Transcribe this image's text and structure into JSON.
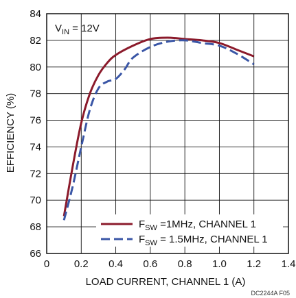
{
  "chart_data": {
    "type": "line",
    "xlabel": "LOAD CURRENT, CHANNEL 1 (A)",
    "ylabel": "EFFICIENCY (%)",
    "xlim": [
      0,
      1.4
    ],
    "ylim": [
      66,
      84
    ],
    "xticks": [
      "0",
      "0.2",
      "0.4",
      "0.6",
      "0.8",
      "1.0",
      "1.2",
      "1.4"
    ],
    "yticks": [
      "66",
      "68",
      "70",
      "72",
      "74",
      "76",
      "78",
      "80",
      "82",
      "84"
    ],
    "grid": true,
    "annotation": {
      "main": "V",
      "sub": "IN",
      "rest": " = 12V"
    },
    "code_label": "DC2244A F05",
    "legend_position": "bottom-right",
    "series": [
      {
        "legend_main": "F",
        "legend_sub": "SW",
        "legend_rest": " =1MHz, CHANNEL 1",
        "color": "#8B1A2B",
        "dash": "solid",
        "x": [
          0.1,
          0.15,
          0.2,
          0.25,
          0.3,
          0.35,
          0.4,
          0.5,
          0.6,
          0.7,
          0.8,
          0.9,
          1.0,
          1.1,
          1.2
        ],
        "y": [
          68.8,
          72.5,
          75.8,
          78.0,
          79.4,
          80.3,
          80.9,
          81.6,
          82.1,
          82.2,
          82.1,
          82.0,
          81.8,
          81.3,
          80.8
        ]
      },
      {
        "legend_main": "F",
        "legend_sub": "SW",
        "legend_rest": " = 1.5MHz, CHANNEL 1",
        "color": "#3A56A6",
        "dash": "long",
        "x": [
          0.1,
          0.15,
          0.2,
          0.25,
          0.3,
          0.35,
          0.4,
          0.45,
          0.5,
          0.6,
          0.7,
          0.8,
          0.9,
          1.0,
          1.1,
          1.2
        ],
        "y": [
          68.5,
          71.0,
          74.0,
          76.8,
          78.4,
          78.9,
          79.1,
          79.8,
          80.7,
          81.5,
          81.9,
          82.0,
          81.8,
          81.6,
          81.0,
          80.2
        ]
      }
    ]
  }
}
